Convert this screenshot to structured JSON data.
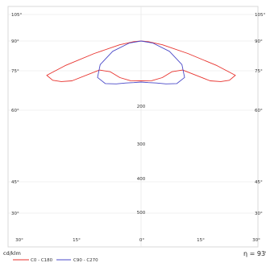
{
  "chart_data": {
    "type": "polar",
    "title": "",
    "unit_label": "cd/klm",
    "efficiency_label": "η = 93%",
    "angle_ticks_left": [
      "105°",
      "90°",
      "75°",
      "60°",
      "45°",
      "30°"
    ],
    "angle_ticks_right": [
      "105°",
      "90°",
      "75°",
      "60°",
      "45°",
      "30°"
    ],
    "bottom_ticks": [
      "30°",
      "15°",
      "0°",
      "15°",
      "30°"
    ],
    "radial_ticks": [
      200,
      300,
      400,
      500
    ],
    "grid": true,
    "legend_position": "bottom-left",
    "series": [
      {
        "name": "C0 - C180",
        "color": "#e8322d",
        "angles": [
          0,
          15,
          30,
          45,
          55,
          60,
          63,
          66,
          70,
          72,
          75,
          80,
          85,
          90
        ],
        "values": [
          165,
          170,
          175,
          180,
          210,
          330,
          370,
          400,
          415,
          330,
          200,
          90,
          30,
          0
        ]
      },
      {
        "name": "C90 - C270",
        "color": "#4a49c8",
        "angles": [
          0,
          10,
          20,
          30,
          40,
          50,
          60,
          70,
          80,
          90
        ],
        "values": [
          170,
          175,
          185,
          205,
          230,
          235,
          195,
          125,
          50,
          0
        ]
      }
    ]
  }
}
